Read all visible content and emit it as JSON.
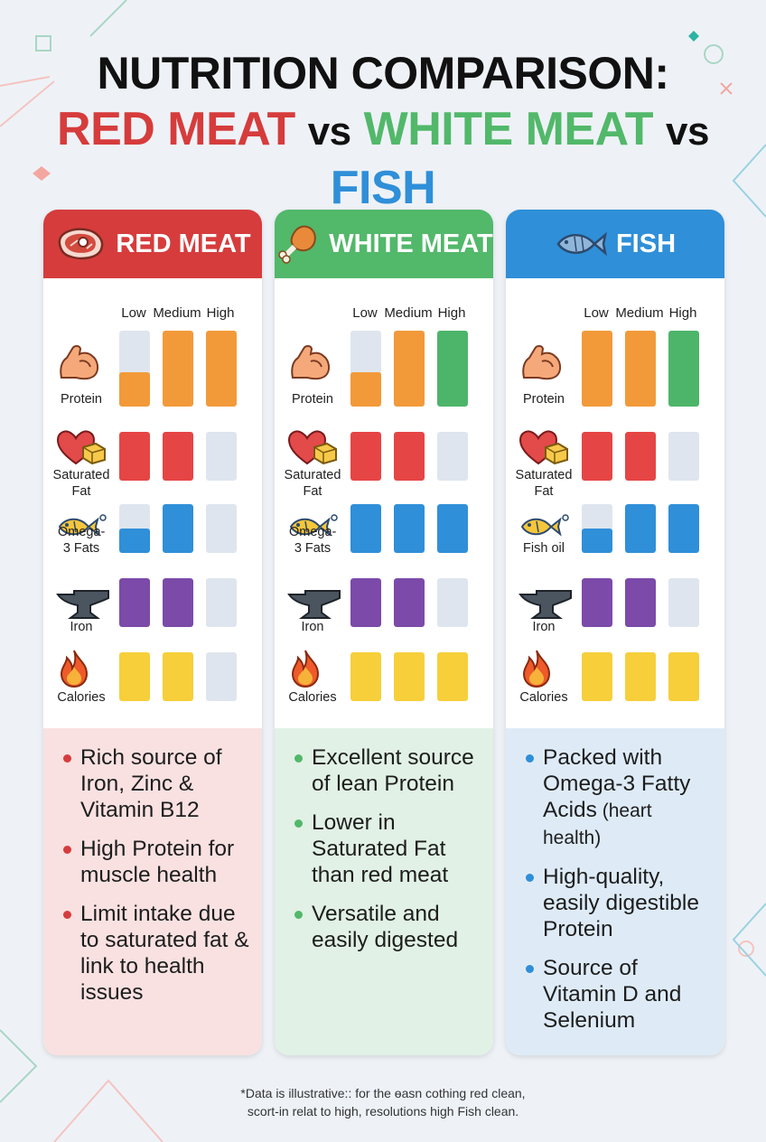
{
  "title": "NUTRITION COMPARISON:",
  "subtitle": {
    "red": "RED MEAT",
    "vs1": "vs",
    "white": "WHITE MEAT",
    "vs2": "vs",
    "fish": "FISH"
  },
  "colors": {
    "red": "#d63c3c",
    "green": "#52b86a",
    "blue": "#2f8fd8",
    "orange": "#f29a3a",
    "bar_red": "#e64545",
    "bar_green": "#4cb56a",
    "bar_blue": "#2f8fd8",
    "bar_purple": "#7c4aa8",
    "bar_yellow": "#f7cf3a",
    "bar_empty": "#dfe5ee"
  },
  "levels": [
    "Low",
    "Medium",
    "High"
  ],
  "cards": [
    {
      "name": "RED MEAT",
      "icon": "steak-icon",
      "rows": [
        {
          "label": "Protein",
          "icon": "flexed-bicep-icon",
          "fills": [
            0.45,
            1.0,
            1.0
          ],
          "colors": [
            "orange",
            "orange",
            "orange"
          ]
        },
        {
          "label": "Saturated Fat",
          "icon": "heart-butter-icon",
          "fills": [
            1.0,
            1.0,
            0
          ],
          "colors": [
            "red",
            "red",
            "red"
          ]
        },
        {
          "label": "Omega-3 Fats",
          "icon": "fish-icon",
          "fills": [
            0.5,
            1.0,
            0
          ],
          "colors": [
            "blue",
            "blue",
            "blue"
          ]
        },
        {
          "label": "Iron",
          "icon": "anvil-icon",
          "fills": [
            1.0,
            1.0,
            0
          ],
          "colors": [
            "purple",
            "purple",
            "purple"
          ]
        },
        {
          "label": "Calories",
          "icon": "flame-icon",
          "fills": [
            1.0,
            1.0,
            0
          ],
          "colors": [
            "yellow",
            "yellow",
            "yellow"
          ]
        }
      ],
      "bullets": [
        {
          "text": "Rich source of Iron, Zinc & Vitamin B12",
          "small": ""
        },
        {
          "text": "High Protein for muscle health",
          "small": ""
        },
        {
          "text": "Limit intake due to saturated fat & link to health issues",
          "small": ""
        }
      ]
    },
    {
      "name": "WHITE MEAT",
      "icon": "chicken-leg-icon",
      "rows": [
        {
          "label": "Protein",
          "icon": "flexed-bicep-icon",
          "fills": [
            0.45,
            1.0,
            1.0
          ],
          "colors": [
            "orange",
            "orange",
            "green"
          ]
        },
        {
          "label": "Saturated Fat",
          "icon": "heart-butter-icon",
          "fills": [
            1.0,
            1.0,
            0
          ],
          "colors": [
            "red",
            "red",
            "red"
          ]
        },
        {
          "label": "Omega-3 Fats",
          "icon": "fish-icon",
          "fills": [
            1.0,
            1.0,
            1.0
          ],
          "colors": [
            "blue",
            "blue",
            "blue"
          ]
        },
        {
          "label": "Iron",
          "icon": "anvil-icon",
          "fills": [
            1.0,
            1.0,
            0
          ],
          "colors": [
            "purple",
            "purple",
            "purple"
          ]
        },
        {
          "label": "Calories",
          "icon": "flame-icon",
          "fills": [
            1.0,
            1.0,
            1.0
          ],
          "colors": [
            "yellow",
            "yellow",
            "yellow"
          ]
        }
      ],
      "bullets": [
        {
          "text": "Excellent source of lean Protein",
          "small": ""
        },
        {
          "text": "Lower in Saturated Fat than red meat",
          "small": ""
        },
        {
          "text": "Versatile and easily digested",
          "small": ""
        }
      ]
    },
    {
      "name": "FISH",
      "icon": "fish-icon",
      "rows": [
        {
          "label": "Protein",
          "icon": "flexed-bicep-icon",
          "fills": [
            1.0,
            1.0,
            1.0
          ],
          "colors": [
            "orange",
            "orange",
            "green"
          ]
        },
        {
          "label": "Saturated Fat",
          "icon": "heart-butter-icon",
          "fills": [
            1.0,
            1.0,
            0
          ],
          "colors": [
            "red",
            "red",
            "red"
          ]
        },
        {
          "label": "Fish oil",
          "icon": "fish-icon",
          "fills": [
            0.5,
            1.0,
            1.0
          ],
          "colors": [
            "blue",
            "blue",
            "blue"
          ]
        },
        {
          "label": "Iron",
          "icon": "anvil-icon",
          "fills": [
            1.0,
            1.0,
            0
          ],
          "colors": [
            "purple",
            "purple",
            "purple"
          ]
        },
        {
          "label": "Calories",
          "icon": "flame-icon",
          "fills": [
            1.0,
            1.0,
            1.0
          ],
          "colors": [
            "yellow",
            "yellow",
            "yellow"
          ]
        }
      ],
      "bullets": [
        {
          "text": "Packed with Omega-3 Fatty Acids",
          "small": "(heart health)"
        },
        {
          "text": "High-quality, easily digestible Protein",
          "small": ""
        },
        {
          "text": "Source of Vitamin D and Selenium",
          "small": ""
        }
      ]
    }
  ],
  "footnote": {
    "line1": "*Data is illustrative:: for the ɵasn cothing red clean,",
    "line2": "scort-in relat to high, resolutions high Fish clean."
  }
}
